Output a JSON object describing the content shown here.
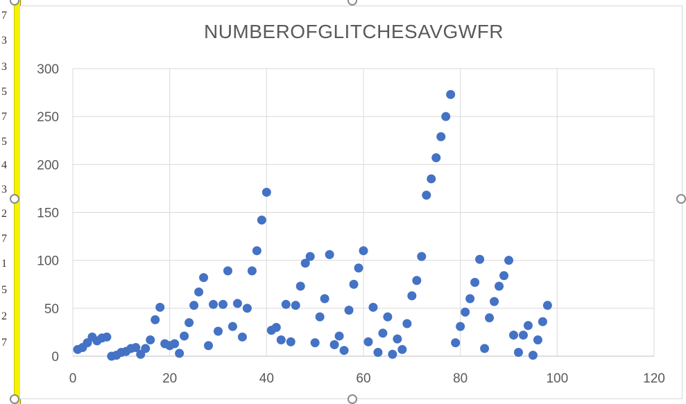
{
  "left_strip_glyphs": [
    "7",
    "3",
    "3",
    "5",
    "7",
    "5",
    "4",
    "3",
    "2",
    "7",
    "1",
    "5",
    "2",
    "7"
  ],
  "chart_data": {
    "type": "scatter",
    "title": "NUMBEROFGLITCHESAVGWFR",
    "xlabel": "",
    "ylabel": "",
    "xlim": [
      0,
      120
    ],
    "ylim": [
      0,
      300
    ],
    "xticks": [
      0,
      20,
      40,
      60,
      80,
      100,
      120
    ],
    "yticks": [
      0,
      50,
      100,
      150,
      200,
      250,
      300
    ],
    "grid": true,
    "legend": "none",
    "color": "#4472c4",
    "points": [
      [
        1,
        7
      ],
      [
        2,
        9
      ],
      [
        3,
        14
      ],
      [
        4,
        20
      ],
      [
        5,
        16
      ],
      [
        6,
        19
      ],
      [
        7,
        20
      ],
      [
        8,
        0
      ],
      [
        9,
        1
      ],
      [
        10,
        4
      ],
      [
        11,
        5
      ],
      [
        12,
        8
      ],
      [
        13,
        9
      ],
      [
        14,
        2
      ],
      [
        15,
        8
      ],
      [
        16,
        17
      ],
      [
        17,
        38
      ],
      [
        18,
        51
      ],
      [
        19,
        13
      ],
      [
        20,
        11
      ],
      [
        21,
        13
      ],
      [
        22,
        3
      ],
      [
        23,
        21
      ],
      [
        24,
        35
      ],
      [
        25,
        53
      ],
      [
        26,
        67
      ],
      [
        27,
        82
      ],
      [
        28,
        11
      ],
      [
        29,
        54
      ],
      [
        30,
        26
      ],
      [
        31,
        54
      ],
      [
        32,
        89
      ],
      [
        33,
        31
      ],
      [
        34,
        55
      ],
      [
        35,
        20
      ],
      [
        36,
        50
      ],
      [
        37,
        89
      ],
      [
        38,
        110
      ],
      [
        39,
        142
      ],
      [
        40,
        171
      ],
      [
        41,
        27
      ],
      [
        42,
        30
      ],
      [
        43,
        17
      ],
      [
        44,
        54
      ],
      [
        45,
        15
      ],
      [
        46,
        53
      ],
      [
        47,
        73
      ],
      [
        48,
        97
      ],
      [
        49,
        104
      ],
      [
        50,
        14
      ],
      [
        51,
        41
      ],
      [
        52,
        60
      ],
      [
        53,
        106
      ],
      [
        54,
        12
      ],
      [
        55,
        21
      ],
      [
        56,
        6
      ],
      [
        57,
        48
      ],
      [
        58,
        75
      ],
      [
        59,
        92
      ],
      [
        60,
        110
      ],
      [
        61,
        15
      ],
      [
        62,
        51
      ],
      [
        63,
        4
      ],
      [
        64,
        24
      ],
      [
        65,
        41
      ],
      [
        66,
        2
      ],
      [
        67,
        18
      ],
      [
        68,
        7
      ],
      [
        69,
        34
      ],
      [
        70,
        63
      ],
      [
        71,
        79
      ],
      [
        72,
        104
      ],
      [
        73,
        168
      ],
      [
        74,
        185
      ],
      [
        75,
        207
      ],
      [
        76,
        229
      ],
      [
        77,
        250
      ],
      [
        78,
        273
      ],
      [
        79,
        14
      ],
      [
        80,
        31
      ],
      [
        81,
        46
      ],
      [
        82,
        60
      ],
      [
        83,
        77
      ],
      [
        84,
        101
      ],
      [
        85,
        8
      ],
      [
        86,
        40
      ],
      [
        87,
        57
      ],
      [
        88,
        73
      ],
      [
        89,
        84
      ],
      [
        90,
        100
      ],
      [
        91,
        22
      ],
      [
        92,
        4
      ],
      [
        93,
        22
      ],
      [
        94,
        32
      ],
      [
        95,
        1
      ],
      [
        96,
        17
      ],
      [
        97,
        36
      ],
      [
        98,
        53
      ]
    ]
  }
}
